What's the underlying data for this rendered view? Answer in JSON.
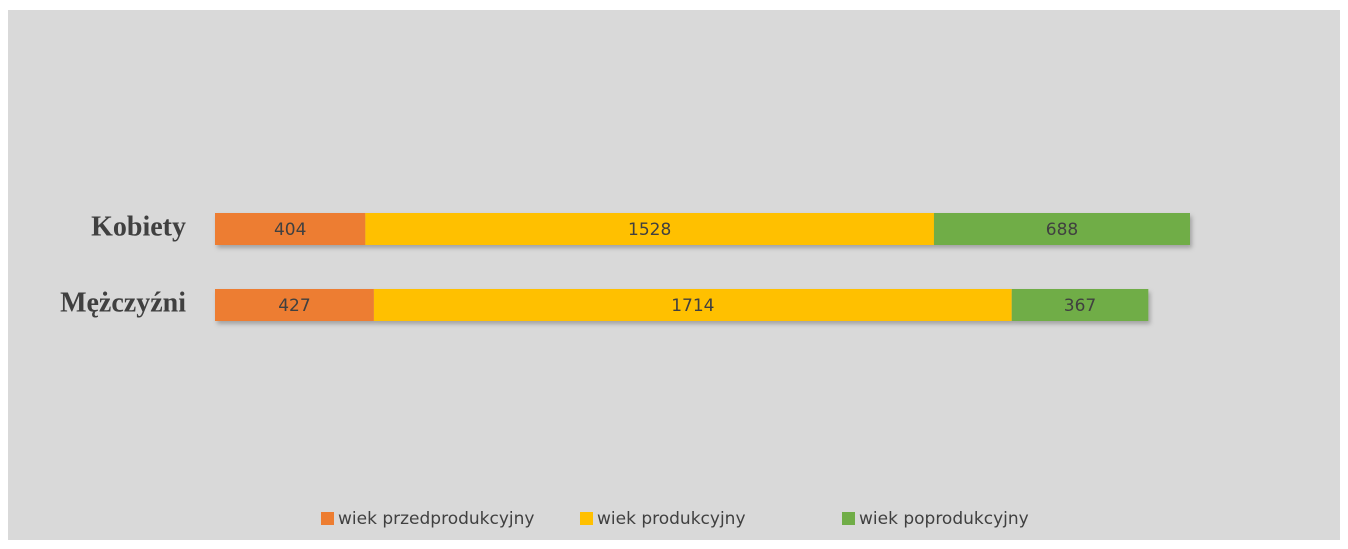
{
  "chart_data": {
    "type": "stacked-bar-horizontal",
    "categories": [
      "Kobiety",
      "Mężczyźni"
    ],
    "series": [
      {
        "name": "wiek przedprodukcyjny",
        "color": "#ed7d31",
        "values": [
          404,
          427
        ]
      },
      {
        "name": "wiek produkcyjny",
        "color": "#ffc000",
        "values": [
          1528,
          1714
        ]
      },
      {
        "name": "wiek poprodukcyjny",
        "color": "#70ad47",
        "values": [
          688,
          367
        ]
      }
    ],
    "legend": "bottom"
  }
}
